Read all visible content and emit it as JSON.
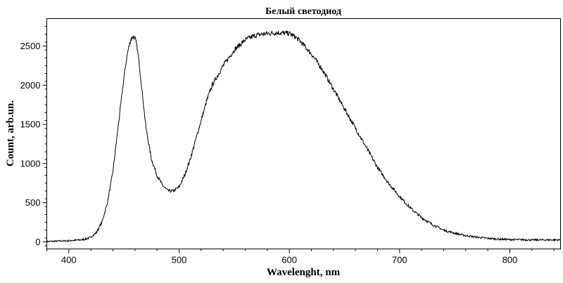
{
  "chart_data": {
    "type": "line",
    "title": "Белый светодиод",
    "xlabel": "Wavelenght, nm",
    "ylabel": "Count, arb.un.",
    "xlim": [
      380,
      846
    ],
    "ylim": [
      -90,
      2850
    ],
    "x_ticks": [
      400,
      500,
      600,
      700,
      800
    ],
    "y_ticks": [
      0,
      500,
      1000,
      1500,
      2000,
      2500
    ],
    "grid": false,
    "legend": "none",
    "series": [
      {
        "color": "#000000",
        "x": [
          380,
          390,
          400,
          410,
          415,
          420,
          425,
          430,
          435,
          440,
          445,
          450,
          453,
          456,
          458,
          460,
          462,
          464,
          467,
          470,
          475,
          480,
          485,
          490,
          495,
          500,
          505,
          510,
          515,
          520,
          525,
          530,
          540,
          550,
          560,
          570,
          580,
          590,
          600,
          605,
          610,
          620,
          630,
          640,
          650,
          660,
          670,
          680,
          690,
          700,
          710,
          720,
          730,
          740,
          750,
          760,
          770,
          780,
          790,
          800,
          810,
          820,
          830,
          846
        ],
        "y": [
          5,
          10,
          15,
          25,
          35,
          60,
          120,
          250,
          500,
          900,
          1500,
          2100,
          2400,
          2580,
          2620,
          2600,
          2480,
          2250,
          1850,
          1450,
          1050,
          850,
          720,
          650,
          650,
          700,
          850,
          1050,
          1300,
          1550,
          1800,
          2000,
          2250,
          2450,
          2580,
          2640,
          2660,
          2670,
          2660,
          2620,
          2560,
          2400,
          2200,
          1950,
          1700,
          1450,
          1200,
          950,
          750,
          580,
          430,
          310,
          220,
          150,
          110,
          80,
          60,
          45,
          35,
          30,
          28,
          25,
          25,
          25
        ]
      }
    ]
  }
}
